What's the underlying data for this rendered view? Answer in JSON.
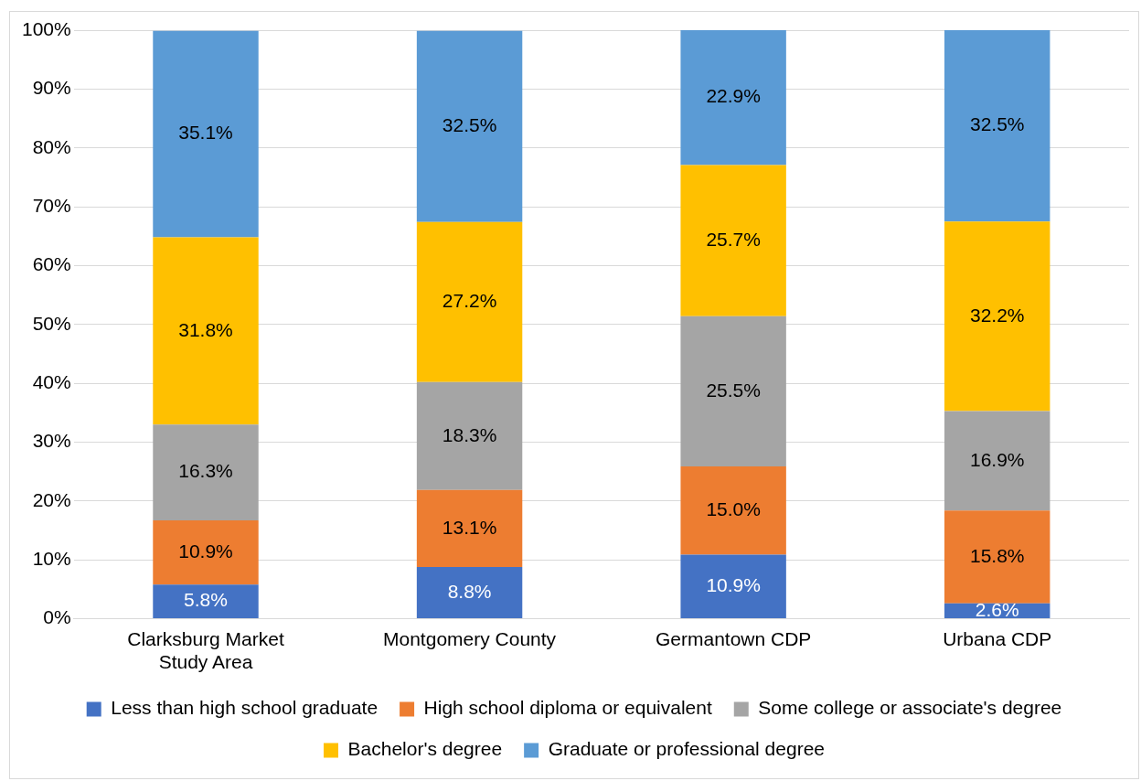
{
  "chart_data": {
    "type": "bar",
    "stacked": true,
    "categories": [
      "Clarksburg Market Study Area",
      "Montgomery County",
      "Germantown CDP",
      "Urbana CDP"
    ],
    "series": [
      {
        "name": "Less than high school graduate",
        "color": "#4472c4",
        "values": [
          5.8,
          8.8,
          10.9,
          2.6
        ]
      },
      {
        "name": "High school diploma or equivalent",
        "color": "#ed7d31",
        "values": [
          10.9,
          13.1,
          15.0,
          15.8
        ]
      },
      {
        "name": "Some college or associate's degree",
        "color": "#a5a5a5",
        "values": [
          16.3,
          18.3,
          25.5,
          16.9
        ]
      },
      {
        "name": "Bachelor's degree",
        "color": "#ffc000",
        "values": [
          31.8,
          27.2,
          25.7,
          32.2
        ]
      },
      {
        "name": "Graduate or professional degree",
        "color": "#5b9bd5",
        "values": [
          35.1,
          32.5,
          22.9,
          32.5
        ]
      }
    ],
    "value_labels": [
      [
        "5.8%",
        "8.8%",
        "10.9%",
        "2.6%"
      ],
      [
        "10.9%",
        "13.1%",
        "15.0%",
        "15.8%"
      ],
      [
        "16.3%",
        "18.3%",
        "25.5%",
        "16.9%"
      ],
      [
        "31.8%",
        "27.2%",
        "25.7%",
        "32.2%"
      ],
      [
        "35.1%",
        "32.5%",
        "22.9%",
        "32.5%"
      ]
    ],
    "ylim": [
      0,
      100
    ],
    "yticks": [
      {
        "value": 0,
        "label": "0%"
      },
      {
        "value": 10,
        "label": "10%"
      },
      {
        "value": 20,
        "label": "20%"
      },
      {
        "value": 30,
        "label": "30%"
      },
      {
        "value": 40,
        "label": "40%"
      },
      {
        "value": 50,
        "label": "50%"
      },
      {
        "value": 60,
        "label": "60%"
      },
      {
        "value": 70,
        "label": "70%"
      },
      {
        "value": 80,
        "label": "80%"
      },
      {
        "value": 90,
        "label": "90%"
      },
      {
        "value": 100,
        "label": "100%"
      }
    ],
    "grid": "y",
    "legend": "bottom"
  }
}
